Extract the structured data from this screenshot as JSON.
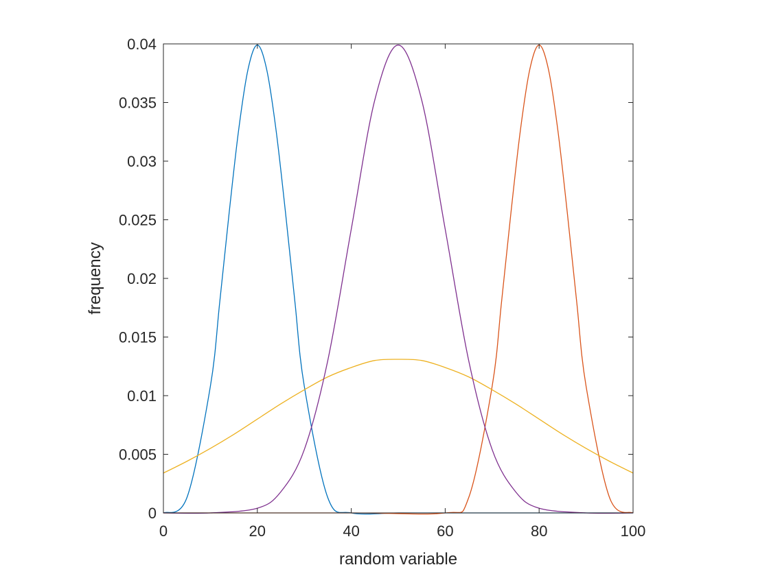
{
  "chart_data": {
    "type": "line",
    "title": "",
    "xlabel": "random variable",
    "ylabel": "frequency",
    "xlim": [
      0,
      100
    ],
    "ylim": [
      0,
      0.04
    ],
    "grid": false,
    "legend": "none",
    "xticks": [
      0,
      20,
      40,
      60,
      80,
      100
    ],
    "xtick_labels": [
      "0",
      "20",
      "40",
      "60",
      "80",
      "100"
    ],
    "yticks": [
      0,
      0.005,
      0.01,
      0.015,
      0.02,
      0.025,
      0.03,
      0.035,
      0.04
    ],
    "ytick_labels": [
      "0",
      "0.005",
      "0.01",
      "0.015",
      "0.02",
      "0.025",
      "0.03",
      "0.035",
      "0.04"
    ],
    "colors": {
      "axes": "#262626",
      "background": "#ffffff"
    },
    "series": [
      {
        "color": "#0072BD",
        "x": [
          0,
          5,
          10,
          12,
          14,
          16,
          18,
          20,
          22,
          24,
          26,
          28,
          30,
          35,
          40,
          50,
          60,
          80,
          100
        ],
        "y": [
          0.0,
          0.0013,
          0.0108,
          0.018,
          0.0256,
          0.0326,
          0.0378,
          0.0399,
          0.0378,
          0.0326,
          0.0256,
          0.018,
          0.0108,
          0.0013,
          0.0,
          0.0,
          0.0,
          0.0,
          0.0
        ]
      },
      {
        "color": "#D95319",
        "x": [
          0,
          40,
          60,
          65,
          70,
          72,
          74,
          76,
          78,
          80,
          82,
          84,
          86,
          88,
          90,
          95,
          100
        ],
        "y": [
          0.0,
          0.0,
          0.0,
          0.0013,
          0.0108,
          0.018,
          0.0256,
          0.0326,
          0.0378,
          0.0399,
          0.0378,
          0.0326,
          0.0256,
          0.018,
          0.0108,
          0.0013,
          0.0
        ]
      },
      {
        "color": "#EDB120",
        "x": [
          0,
          5,
          10,
          15,
          20,
          25,
          30,
          35,
          40,
          45,
          50,
          55,
          60,
          65,
          70,
          75,
          80,
          85,
          90,
          95,
          100
        ],
        "y": [
          0.0034,
          0.0044,
          0.0055,
          0.0067,
          0.008,
          0.0093,
          0.0105,
          0.0116,
          0.0124,
          0.013,
          0.0131,
          0.013,
          0.0124,
          0.0116,
          0.0105,
          0.0093,
          0.008,
          0.0067,
          0.0055,
          0.0044,
          0.0034
        ]
      },
      {
        "color": "#7E2F8E",
        "x": [
          0,
          10,
          20,
          25,
          30,
          35,
          40,
          45,
          50,
          55,
          60,
          65,
          70,
          75,
          80,
          90,
          100
        ],
        "y": [
          0.0,
          0.0,
          0.0004,
          0.0018,
          0.0054,
          0.013,
          0.0242,
          0.0352,
          0.0399,
          0.0352,
          0.0242,
          0.013,
          0.0054,
          0.0018,
          0.0004,
          0.0,
          0.0
        ]
      }
    ]
  }
}
